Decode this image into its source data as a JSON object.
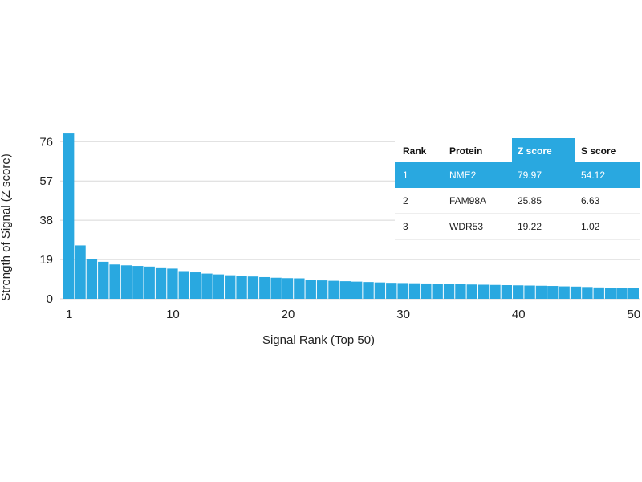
{
  "colors": {
    "bar": "#29a8e0",
    "highlight": "#29a8e0",
    "grid": "#d8d8d8",
    "row_line": "#dddddd"
  },
  "chart_data": {
    "type": "bar",
    "xlabel": "Signal Rank (Top 50)",
    "ylabel": "Strength of Signal (Z score)",
    "ylim": [
      0,
      80
    ],
    "yticks": [
      0,
      19,
      38,
      57,
      76
    ],
    "xticks": [
      1,
      10,
      20,
      30,
      40,
      50
    ],
    "grid": true,
    "categories": [
      1,
      2,
      3,
      4,
      5,
      6,
      7,
      8,
      9,
      10,
      11,
      12,
      13,
      14,
      15,
      16,
      17,
      18,
      19,
      20,
      21,
      22,
      23,
      24,
      25,
      26,
      27,
      28,
      29,
      30,
      31,
      32,
      33,
      34,
      35,
      36,
      37,
      38,
      39,
      40,
      41,
      42,
      43,
      44,
      45,
      46,
      47,
      48,
      49,
      50
    ],
    "values": [
      79.97,
      25.85,
      19.22,
      17.9,
      16.6,
      16.2,
      15.9,
      15.6,
      15.2,
      14.6,
      13.4,
      12.8,
      12.2,
      11.8,
      11.4,
      11.1,
      10.8,
      10.5,
      10.2,
      10.0,
      9.9,
      9.3,
      8.9,
      8.7,
      8.5,
      8.3,
      8.1,
      7.9,
      7.7,
      7.6,
      7.5,
      7.4,
      7.2,
      7.1,
      7.0,
      6.9,
      6.8,
      6.7,
      6.6,
      6.5,
      6.4,
      6.3,
      6.2,
      6.0,
      5.9,
      5.7,
      5.5,
      5.3,
      5.2,
      5.1
    ]
  },
  "table": {
    "headers": [
      "Rank",
      "Protein",
      "Z score",
      "S score"
    ],
    "rows": [
      [
        "1",
        "NME2",
        "79.97",
        "54.12"
      ],
      [
        "2",
        "FAM98A",
        "25.85",
        "6.63"
      ],
      [
        "3",
        "WDR53",
        "19.22",
        "1.02"
      ]
    ]
  }
}
